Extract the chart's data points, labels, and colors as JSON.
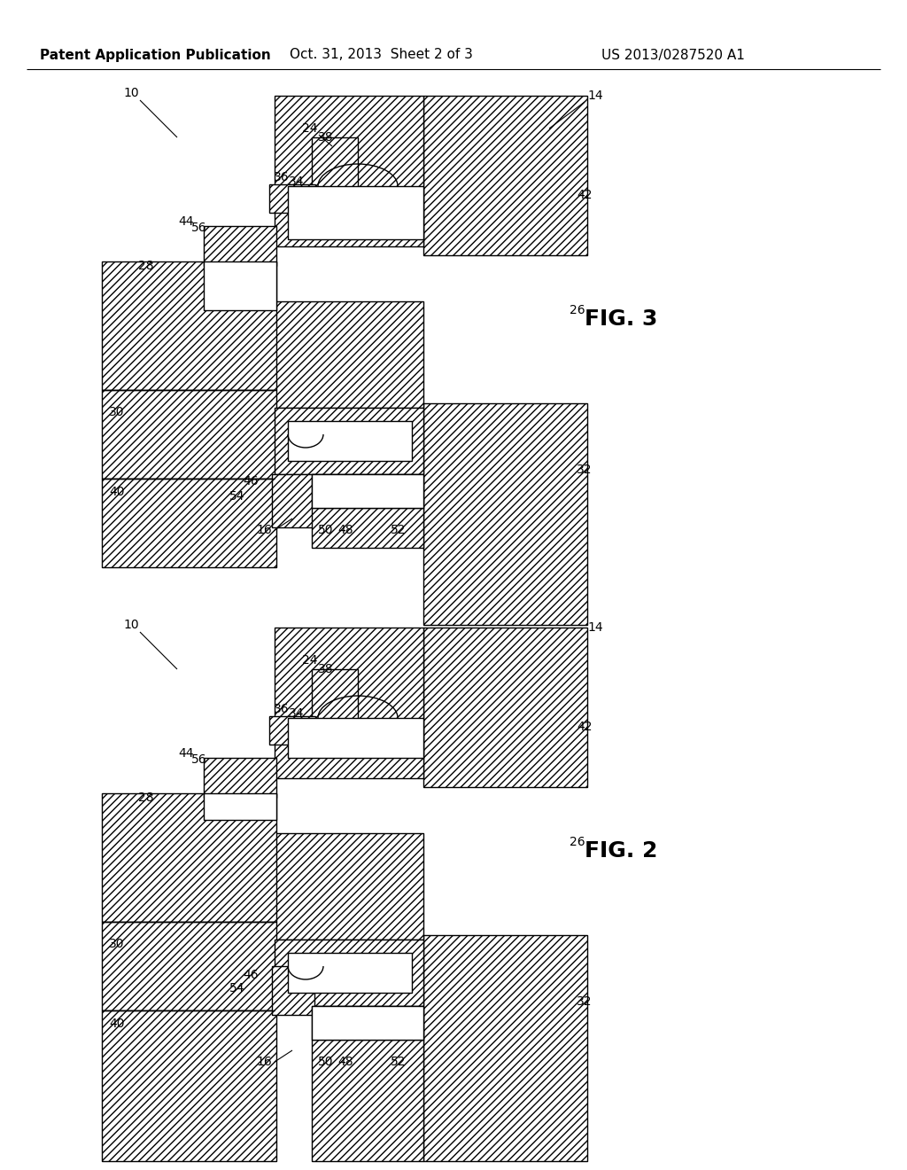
{
  "title_left": "Patent Application Publication",
  "title_mid": "Oct. 31, 2013  Sheet 2 of 3",
  "title_right": "US 2013/0287520 A1",
  "fig2_label": "FIG. 2",
  "fig3_label": "FIG. 3",
  "bg_color": "#ffffff",
  "header_fontsize": 11,
  "label_fontsize": 10,
  "fig_label_fontsize": 18
}
